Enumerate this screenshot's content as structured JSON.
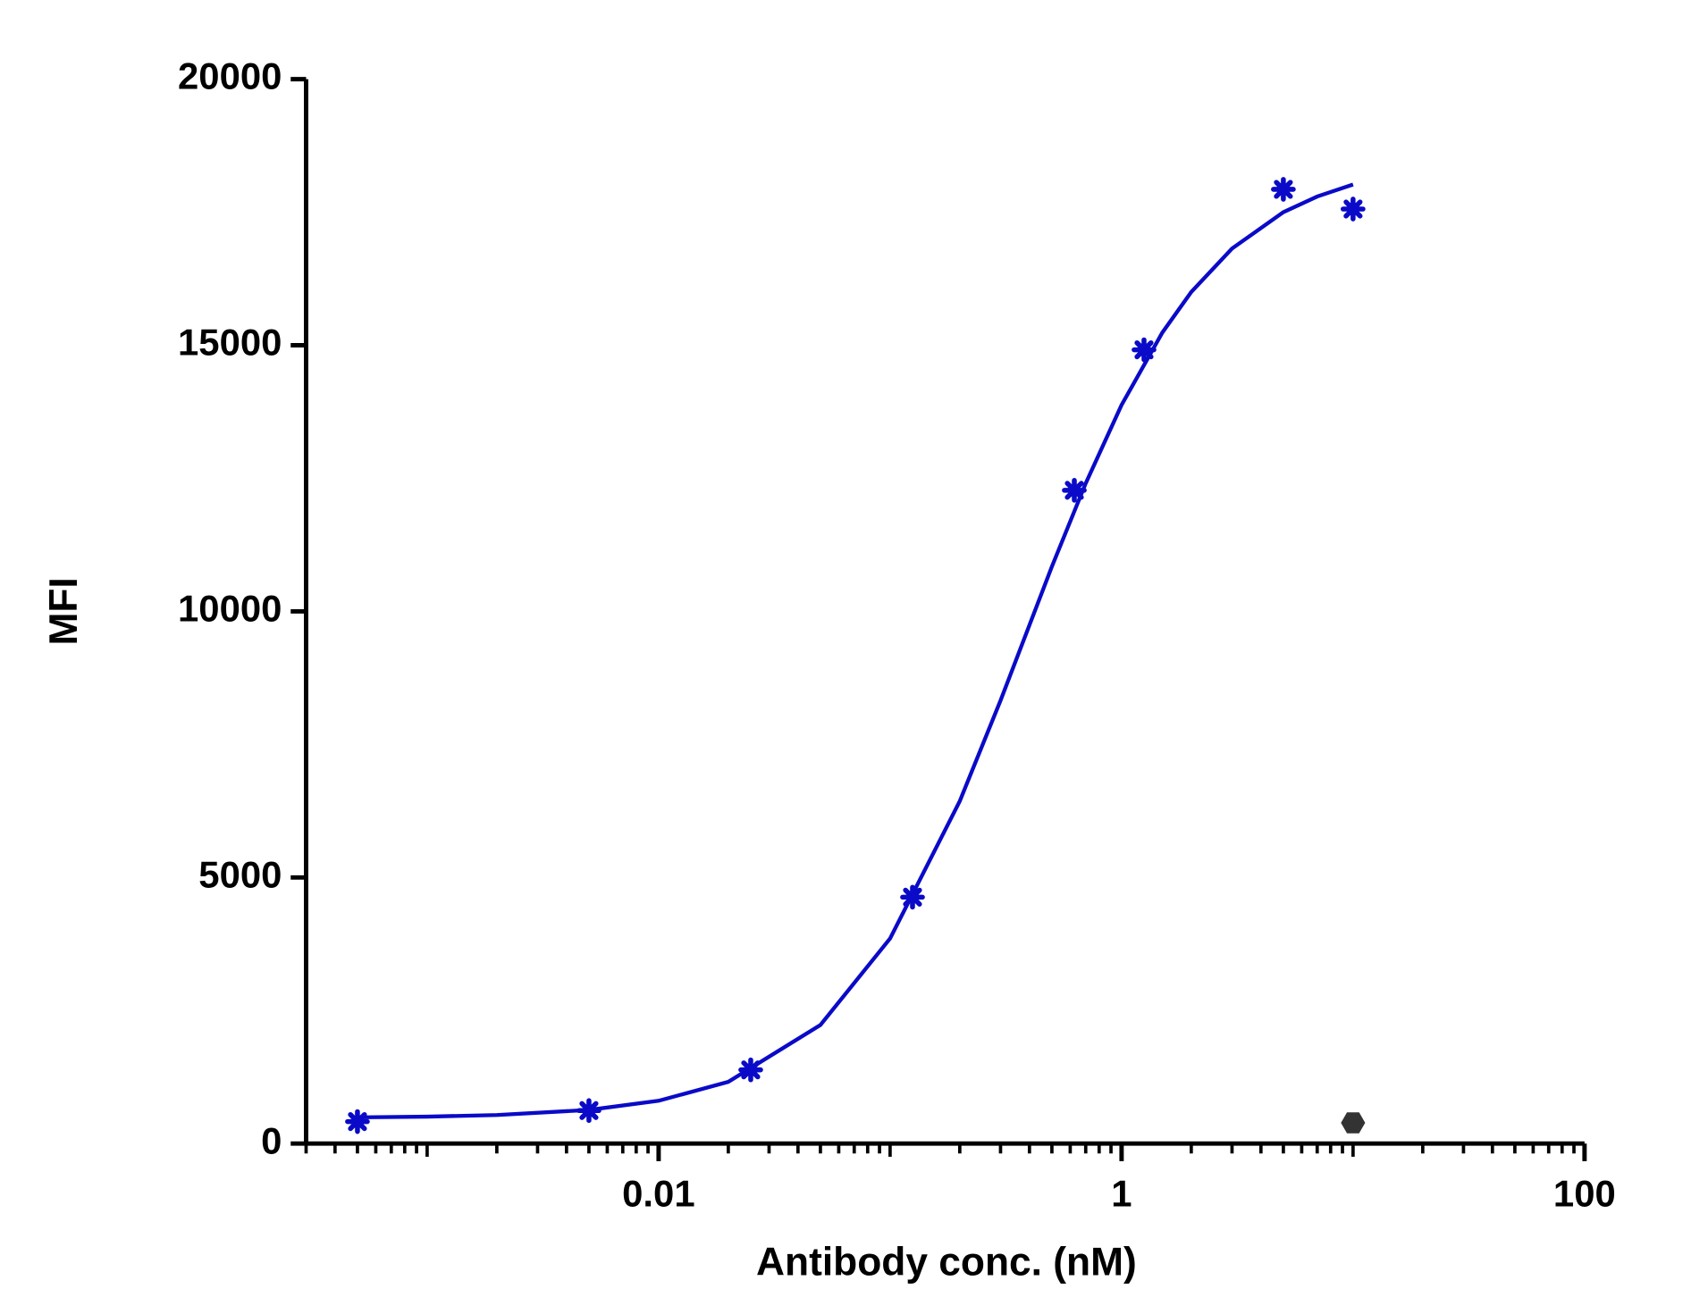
{
  "chart_data": {
    "type": "scatter",
    "y_label": "MFI",
    "x_label": "Antibody conc. (nM)",
    "xscale": "log",
    "minor_ticks": true,
    "xlim": [
      0.0003,
      100
    ],
    "xticks": [
      0.01,
      1,
      100
    ],
    "ylim": [
      0,
      20000
    ],
    "yticks": [
      0,
      5000,
      10000,
      15000,
      20000
    ],
    "series": [
      {
        "color": "#0a0ac8",
        "marker": "asterisk",
        "x": [
          0.0005,
          0.005,
          0.025,
          0.125,
          0.625,
          1.25,
          5,
          10
        ],
        "values": [
          413,
          620,
          1385,
          4630,
          12275,
          14915,
          17930,
          17560
        ]
      },
      {
        "color": "#333333",
        "marker": "hexagon",
        "x": [
          10
        ],
        "values": [
          390
        ]
      }
    ],
    "fit": {
      "color": "#0a0ac8",
      "x": [
        0.0005,
        0.001,
        0.002,
        0.005,
        0.01,
        0.02,
        0.05,
        0.1,
        0.2,
        0.3,
        0.5,
        0.7,
        1,
        1.5,
        2,
        3,
        5,
        7,
        10
      ],
      "values": [
        492,
        506,
        536,
        632,
        804,
        1160,
        2228,
        3854,
        6435,
        8325,
        10842,
        12406,
        13878,
        15238,
        16001,
        16817,
        17501,
        17795,
        18021
      ]
    }
  }
}
